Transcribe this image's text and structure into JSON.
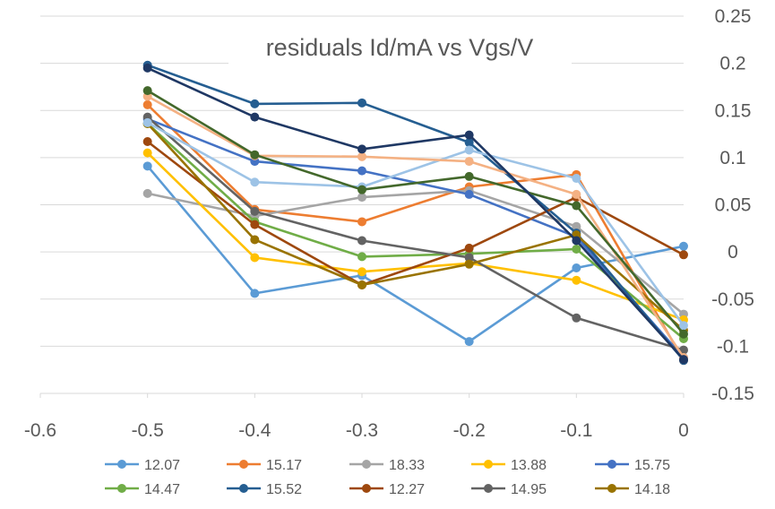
{
  "chart_data": {
    "type": "line",
    "title": "residuals Id/mA vs Vgs/V",
    "xlabel": "",
    "ylabel": "",
    "xlim": [
      -0.6,
      0
    ],
    "ylim": [
      -0.15,
      0.25
    ],
    "x_ticks": [
      "-0.6",
      "-0.5",
      "-0.4",
      "-0.3",
      "-0.2",
      "-0.1",
      "0"
    ],
    "y_ticks": [
      "0.25",
      "0.2",
      "0.15",
      "0.1",
      "0.05",
      "0",
      "-0.05",
      "-0.1",
      "-0.15"
    ],
    "grid": "horizontal",
    "legend_position": "bottom",
    "x": [
      -0.5,
      -0.4,
      -0.3,
      -0.2,
      -0.1,
      0
    ],
    "series": [
      {
        "name": "12.07",
        "color": "#5B9BD5",
        "values": [
          0.091,
          -0.044,
          -0.025,
          -0.095,
          -0.017,
          0.006
        ]
      },
      {
        "name": "15.17",
        "color": "#ED7D31",
        "values": [
          0.156,
          0.045,
          0.032,
          0.069,
          0.082,
          -0.115
        ]
      },
      {
        "name": "18.33",
        "color": "#A5A5A5",
        "values": [
          0.062,
          0.038,
          0.058,
          0.065,
          0.027,
          -0.066
        ]
      },
      {
        "name": "13.88",
        "color": "#FFC000",
        "values": [
          0.105,
          -0.006,
          -0.021,
          -0.012,
          -0.03,
          -0.072
        ]
      },
      {
        "name": "15.75",
        "color": "#4472C4",
        "values": [
          0.141,
          0.096,
          0.086,
          0.061,
          0.016,
          -0.112
        ]
      },
      {
        "name": "14.47",
        "color": "#70AD47",
        "values": [
          0.136,
          0.032,
          -0.005,
          -0.002,
          0.003,
          -0.092
        ]
      },
      {
        "name": "15.52",
        "color": "#255E91",
        "values": [
          0.198,
          0.157,
          0.158,
          0.116,
          0.02,
          -0.115
        ]
      },
      {
        "name": "12.27",
        "color": "#9E480E",
        "values": [
          0.117,
          0.029,
          -0.035,
          0.004,
          0.058,
          -0.003
        ]
      },
      {
        "name": "14.95",
        "color": "#636363",
        "values": [
          0.143,
          0.043,
          0.012,
          -0.006,
          -0.07,
          -0.104
        ]
      },
      {
        "name": "14.18",
        "color": "#997300",
        "values": [
          0.136,
          0.013,
          -0.035,
          -0.013,
          0.018,
          -0.083
        ]
      },
      {
        "color": "#9DC3E6",
        "values": [
          0.137,
          0.074,
          0.069,
          0.108,
          0.078,
          -0.078
        ]
      },
      {
        "color": "#F4B183",
        "values": [
          0.165,
          0.102,
          0.101,
          0.096,
          0.061,
          -0.112
        ]
      },
      {
        "color": "#43682B",
        "values": [
          0.171,
          0.103,
          0.066,
          0.08,
          0.049,
          -0.087
        ]
      },
      {
        "color": "#1F3864",
        "values": [
          0.195,
          0.143,
          0.109,
          0.124,
          0.012,
          -0.114
        ]
      }
    ]
  }
}
